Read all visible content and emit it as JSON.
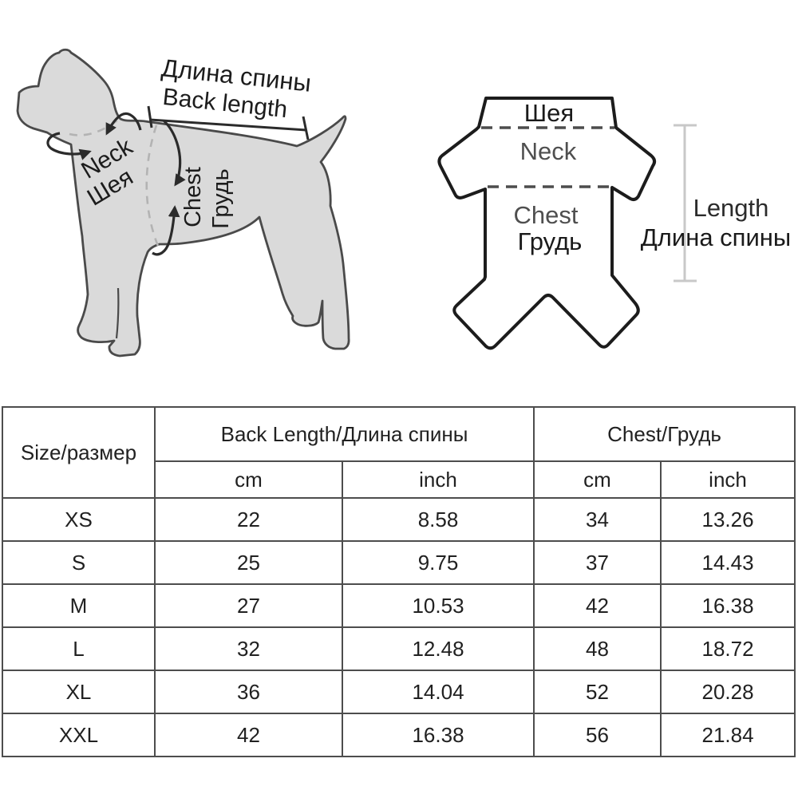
{
  "diagram": {
    "dog": {
      "back_length_ru": "Длина спины",
      "back_length_en": "Back length",
      "neck_en": "Neck",
      "neck_ru": "Шея",
      "chest_en": "Chest",
      "chest_ru": "Грудь"
    },
    "garment": {
      "neck_ru": "Шея",
      "neck_en": "Neck",
      "chest_en": "Chest",
      "chest_ru": "Грудь",
      "length_en": "Length",
      "length_ru": "Длина спины"
    }
  },
  "size_table": {
    "headers": {
      "size": "Size/размер",
      "back_length": "Back Length/Длина спины",
      "chest": "Chest/Грудь",
      "cm": "cm",
      "inch": "inch"
    },
    "rows": [
      {
        "size": "XS",
        "back_cm": "22",
        "back_inch": "8.58",
        "chest_cm": "34",
        "chest_inch": "13.26"
      },
      {
        "size": "S",
        "back_cm": "25",
        "back_inch": "9.75",
        "chest_cm": "37",
        "chest_inch": "14.43"
      },
      {
        "size": "M",
        "back_cm": "27",
        "back_inch": "10.53",
        "chest_cm": "42",
        "chest_inch": "16.38"
      },
      {
        "size": "L",
        "back_cm": "32",
        "back_inch": "12.48",
        "chest_cm": "48",
        "chest_inch": "18.72"
      },
      {
        "size": "XL",
        "back_cm": "36",
        "back_inch": "14.04",
        "chest_cm": "52",
        "chest_inch": "20.28"
      },
      {
        "size": "XXL",
        "back_cm": "42",
        "back_inch": "16.38",
        "chest_cm": "56",
        "chest_inch": "21.84"
      }
    ]
  },
  "colors": {
    "dog_fill": "#dadada",
    "dog_outline": "#4a4a4a",
    "garment_outline": "#1c1c1c",
    "dashed_line": "#b3b3b3",
    "length_line": "#c8c8c8",
    "table_border": "#4d4d4d",
    "text": "#1c1c1c"
  }
}
